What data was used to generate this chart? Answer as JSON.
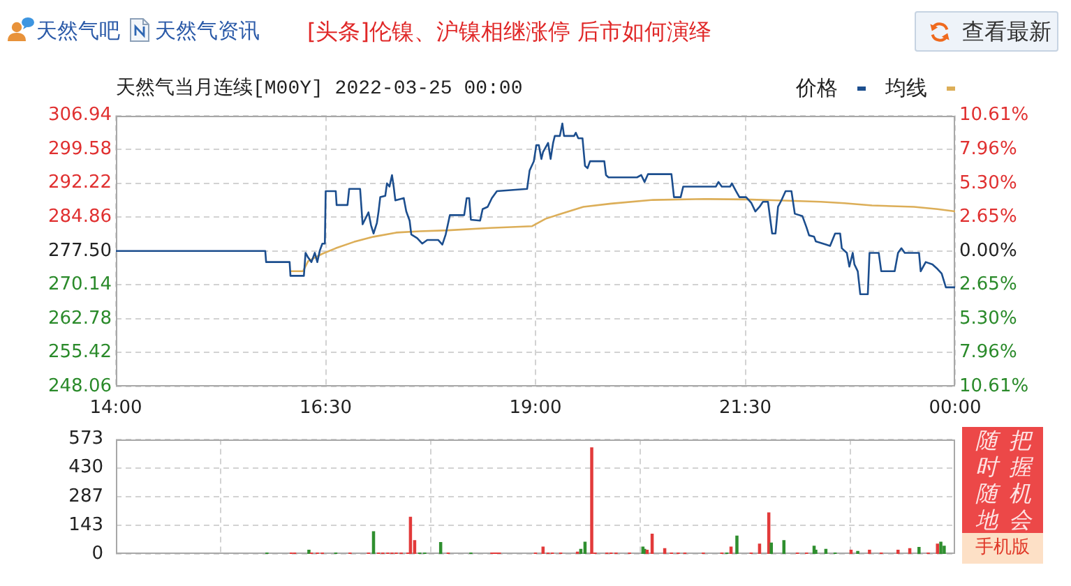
{
  "chart_data": [
    {
      "type": "other",
      "annotations": [
        "天然气吧",
        "天然气资讯",
        "[头条]伦镍、沪镍相继涨停 后市如何演绎",
        "查看最新"
      ]
    },
    {
      "type": "line",
      "title": "天然气当月连续[M00Y] 2022-03-25 00:00",
      "series": [
        {
          "name": "价格",
          "color": "#1c4e8e",
          "x": [
            14,
            15.78,
            15.79,
            16.07,
            16.08,
            16.24,
            16.26,
            16.29,
            16.33,
            16.37,
            16.4,
            16.43,
            16.46,
            16.49,
            16.5,
            16.62,
            16.63,
            16.76,
            16.78,
            16.91,
            16.94,
            17.01,
            17.04,
            17.07,
            17.11,
            17.13,
            17.15,
            17.21,
            17.23,
            17.26,
            17.29,
            17.31,
            17.33,
            17.43,
            17.46,
            17.5,
            17.52,
            17.59,
            17.65,
            17.71,
            17.84,
            17.89,
            17.93,
            17.98,
            18.15,
            18.18,
            18.21,
            18.23,
            18.34,
            18.37,
            18.43,
            18.48,
            18.54,
            18.9,
            18.93,
            18.98,
            19.01,
            19.04,
            19.07,
            19.09,
            19.15,
            19.18,
            19.21,
            19.23,
            19.29,
            19.32,
            19.34,
            19.46,
            19.48,
            19.51,
            19.56,
            19.59,
            19.62,
            19.65,
            19.82,
            19.84,
            19.87,
            20.21,
            20.26,
            20.3,
            20.34,
            20.62,
            20.65,
            20.73,
            20.76,
            21.15,
            21.18,
            21.22,
            21.32,
            21.34,
            21.39,
            21.43,
            21.51,
            21.57,
            21.62,
            21.67,
            21.71,
            21.77,
            21.82,
            21.86,
            21.89,
            21.93,
            21.98,
            22.05,
            22.09,
            22.18,
            22.23,
            22.26,
            22.32,
            22.34,
            22.46,
            22.51,
            22.57,
            22.63,
            22.65,
            22.71,
            22.74,
            22.78,
            22.8,
            22.84,
            22.87,
            22.96,
            22.98,
            23.09,
            23.12,
            23.28,
            23.32,
            23.36,
            23.4,
            23.57,
            23.59,
            23.65,
            23.73,
            23.79,
            23.84,
            23.89,
            24
          ],
          "values": [
            277.5,
            277.5,
            275.1,
            275.1,
            272.1,
            272.1,
            277.1,
            276.1,
            275.1,
            277.1,
            275.1,
            277.6,
            279.1,
            279.1,
            290.5,
            290.5,
            287.5,
            287.5,
            291,
            291,
            283.3,
            285.9,
            283.1,
            281.3,
            283.6,
            286.1,
            289.2,
            289.5,
            292.2,
            291.5,
            294,
            291.5,
            288.5,
            289,
            286.1,
            284.1,
            281.1,
            280.3,
            279.1,
            279.9,
            279.9,
            278.9,
            281.1,
            285.3,
            285.3,
            289,
            289,
            284.3,
            284.1,
            286.6,
            287.1,
            289,
            290.5,
            291,
            295,
            297,
            300.5,
            300.5,
            297.5,
            299,
            301,
            297.5,
            301,
            302.5,
            302.5,
            305.2,
            302.5,
            302.5,
            303.2,
            302,
            302,
            296,
            295.5,
            297,
            297,
            294,
            293.5,
            293.5,
            294,
            292.5,
            294.2,
            294.2,
            289.2,
            289.2,
            291.5,
            291.5,
            292.5,
            291.5,
            291.5,
            292.2,
            290.5,
            289.2,
            289.2,
            288,
            286.1,
            287.1,
            288.2,
            288.2,
            281.3,
            281.3,
            287.1,
            288.5,
            290.5,
            290.5,
            285.6,
            285.1,
            282.6,
            280.9,
            280.6,
            279.6,
            278.9,
            278.6,
            281.3,
            281.3,
            278.1,
            277.1,
            274.1,
            277.1,
            274.6,
            273.1,
            268.1,
            268.1,
            277.1,
            277.1,
            273.1,
            273.1,
            277.1,
            278.1,
            277.1,
            277.1,
            273.1,
            275.1,
            274.6,
            273.6,
            272.6,
            269.6,
            269.6
          ]
        },
        {
          "name": "均线",
          "color": "#dcae58",
          "x": [
            16.08,
            16.23,
            16.29,
            16.46,
            16.62,
            16.84,
            17.07,
            17.34,
            17.62,
            17.96,
            18.46,
            18.96,
            19.12,
            19.29,
            19.57,
            19.9,
            20.4,
            21.01,
            21.51,
            21.9,
            22.4,
            22.68,
            23.01,
            23.51,
            23.79,
            24
          ],
          "values": [
            273.1,
            273.1,
            275.3,
            276.9,
            278.1,
            279.5,
            280.6,
            281.5,
            281.8,
            282,
            282.5,
            282.9,
            284.5,
            285.5,
            287.1,
            287.8,
            288.6,
            288.8,
            288.7,
            288.5,
            288.2,
            287.9,
            287.4,
            287.1,
            286.6,
            286.1
          ]
        }
      ],
      "xlim": [
        14,
        24
      ],
      "xticks": [
        {
          "value": 14,
          "label": "14:00"
        },
        {
          "value": 16.5,
          "label": "16:30"
        },
        {
          "value": 19,
          "label": "19:00"
        },
        {
          "value": 21.5,
          "label": "21:30"
        },
        {
          "value": 24,
          "label": "00:00"
        }
      ],
      "ylim": [
        248.06,
        306.94
      ],
      "yticks": [
        248.06,
        255.42,
        262.78,
        270.14,
        {
          "value": 277.5,
          "label": "277.50"
        },
        284.86,
        292.22,
        299.58,
        306.94
      ],
      "y2lim": [
        -10.61,
        10.61
      ],
      "y2ticks": [
        {
          "value": -10.61,
          "label": "10.61%"
        },
        {
          "value": -7.96,
          "label": "7.96%"
        },
        {
          "value": -5.3,
          "label": "5.30%"
        },
        {
          "value": -2.65,
          "label": "2.65%"
        },
        {
          "value": 0,
          "label": "0.00%"
        },
        {
          "value": 2.65,
          "label": "2.65%"
        },
        {
          "value": 5.3,
          "label": "5.30%"
        },
        {
          "value": 7.96,
          "label": "7.96%"
        },
        {
          "value": 10.61,
          "label": "10.61%"
        }
      ],
      "grid": true,
      "legend": "top right",
      "marker": "none"
    },
    {
      "type": "bar",
      "x": [
        15.8,
        16.09,
        16.13,
        16.3,
        16.33,
        16.4,
        16.46,
        16.62,
        16.79,
        17.01,
        17.07,
        17.13,
        17.18,
        17.24,
        17.29,
        17.34,
        17.4,
        17.48,
        17.51,
        17.56,
        17.62,
        17.68,
        17.87,
        17.96,
        18.23,
        18.48,
        18.51,
        18.54,
        18.57,
        19,
        19.09,
        19.15,
        19.2,
        19.3,
        19.5,
        19.54,
        19.59,
        19.67,
        19.71,
        19.85,
        19.9,
        19.96,
        20.12,
        20.28,
        20.3,
        20.33,
        20.39,
        20.54,
        20.62,
        20.7,
        20.78,
        21,
        21.22,
        21.28,
        21.33,
        21.4,
        21.57,
        21.67,
        21.78,
        21.81,
        21.96,
        22.12,
        22.23,
        22.32,
        22.34,
        22.46,
        22.57,
        22.76,
        22.84,
        22.98,
        23.12,
        23.32,
        23.46,
        23.57,
        23.68,
        23.79,
        23.83,
        23.87
      ],
      "values": [
        6,
        6,
        6,
        20,
        6,
        6,
        6,
        6,
        6,
        6,
        112,
        6,
        6,
        6,
        6,
        6,
        6,
        6,
        184,
        68,
        6,
        6,
        58,
        6,
        6,
        6,
        6,
        6,
        6,
        6,
        36,
        6,
        6,
        6,
        10,
        24,
        60,
        530,
        6,
        6,
        6,
        6,
        6,
        36,
        24,
        20,
        100,
        28,
        6,
        6,
        6,
        6,
        6,
        6,
        36,
        90,
        6,
        50,
        206,
        56,
        68,
        6,
        6,
        40,
        20,
        24,
        6,
        20,
        14,
        20,
        6,
        20,
        28,
        34,
        6,
        50,
        60,
        40
      ],
      "colors": [
        "#2f8f2f",
        "#e23a3a",
        "#e23a3a",
        "#2f8f2f",
        "#e23a3a",
        "#e23a3a",
        "#e23a3a",
        "#2f8f2f",
        "#e23a3a",
        "#e23a3a",
        "#2f8f2f",
        "#e23a3a",
        "#e23a3a",
        "#e23a3a",
        "#e23a3a",
        "#e23a3a",
        "#e23a3a",
        "#e23a3a",
        "#e23a3a",
        "#e23a3a",
        "#2f8f2f",
        "#2f8f2f",
        "#2f8f2f",
        "#e23a3a",
        "#2f8f2f",
        "#e23a3a",
        "#e23a3a",
        "#e23a3a",
        "#e23a3a",
        "#e23a3a",
        "#e23a3a",
        "#e23a3a",
        "#e23a3a",
        "#e23a3a",
        "#e23a3a",
        "#2f8f2f",
        "#2f8f2f",
        "#e23a3a",
        "#e23a3a",
        "#e23a3a",
        "#e23a3a",
        "#e23a3a",
        "#e23a3a",
        "#2f8f2f",
        "#2f8f2f",
        "#e23a3a",
        "#e23a3a",
        "#e23a3a",
        "#e23a3a",
        "#e23a3a",
        "#e23a3a",
        "#e23a3a",
        "#e23a3a",
        "#2f8f2f",
        "#e23a3a",
        "#2f8f2f",
        "#e23a3a",
        "#e23a3a",
        "#e23a3a",
        "#2f8f2f",
        "#2f8f2f",
        "#e23a3a",
        "#e23a3a",
        "#2f8f2f",
        "#2f8f2f",
        "#2f8f2f",
        "#2f8f2f",
        "#e23a3a",
        "#2f8f2f",
        "#e23a3a",
        "#e23a3a",
        "#e23a3a",
        "#e23a3a",
        "#2f8f2f",
        "#e23a3a",
        "#e23a3a",
        "#2f8f2f",
        "#2f8f2f"
      ],
      "xlim": [
        14,
        24
      ],
      "xticks": [
        14,
        16.5,
        19,
        21.5,
        24
      ],
      "ylim": [
        0,
        573
      ],
      "yticks": [
        0,
        143,
        287,
        430,
        573
      ],
      "tick_labels": "y",
      "grid": true
    },
    {
      "type": "other",
      "annotations": [
        "把握机会",
        "随时随地",
        "手机版"
      ]
    }
  ]
}
